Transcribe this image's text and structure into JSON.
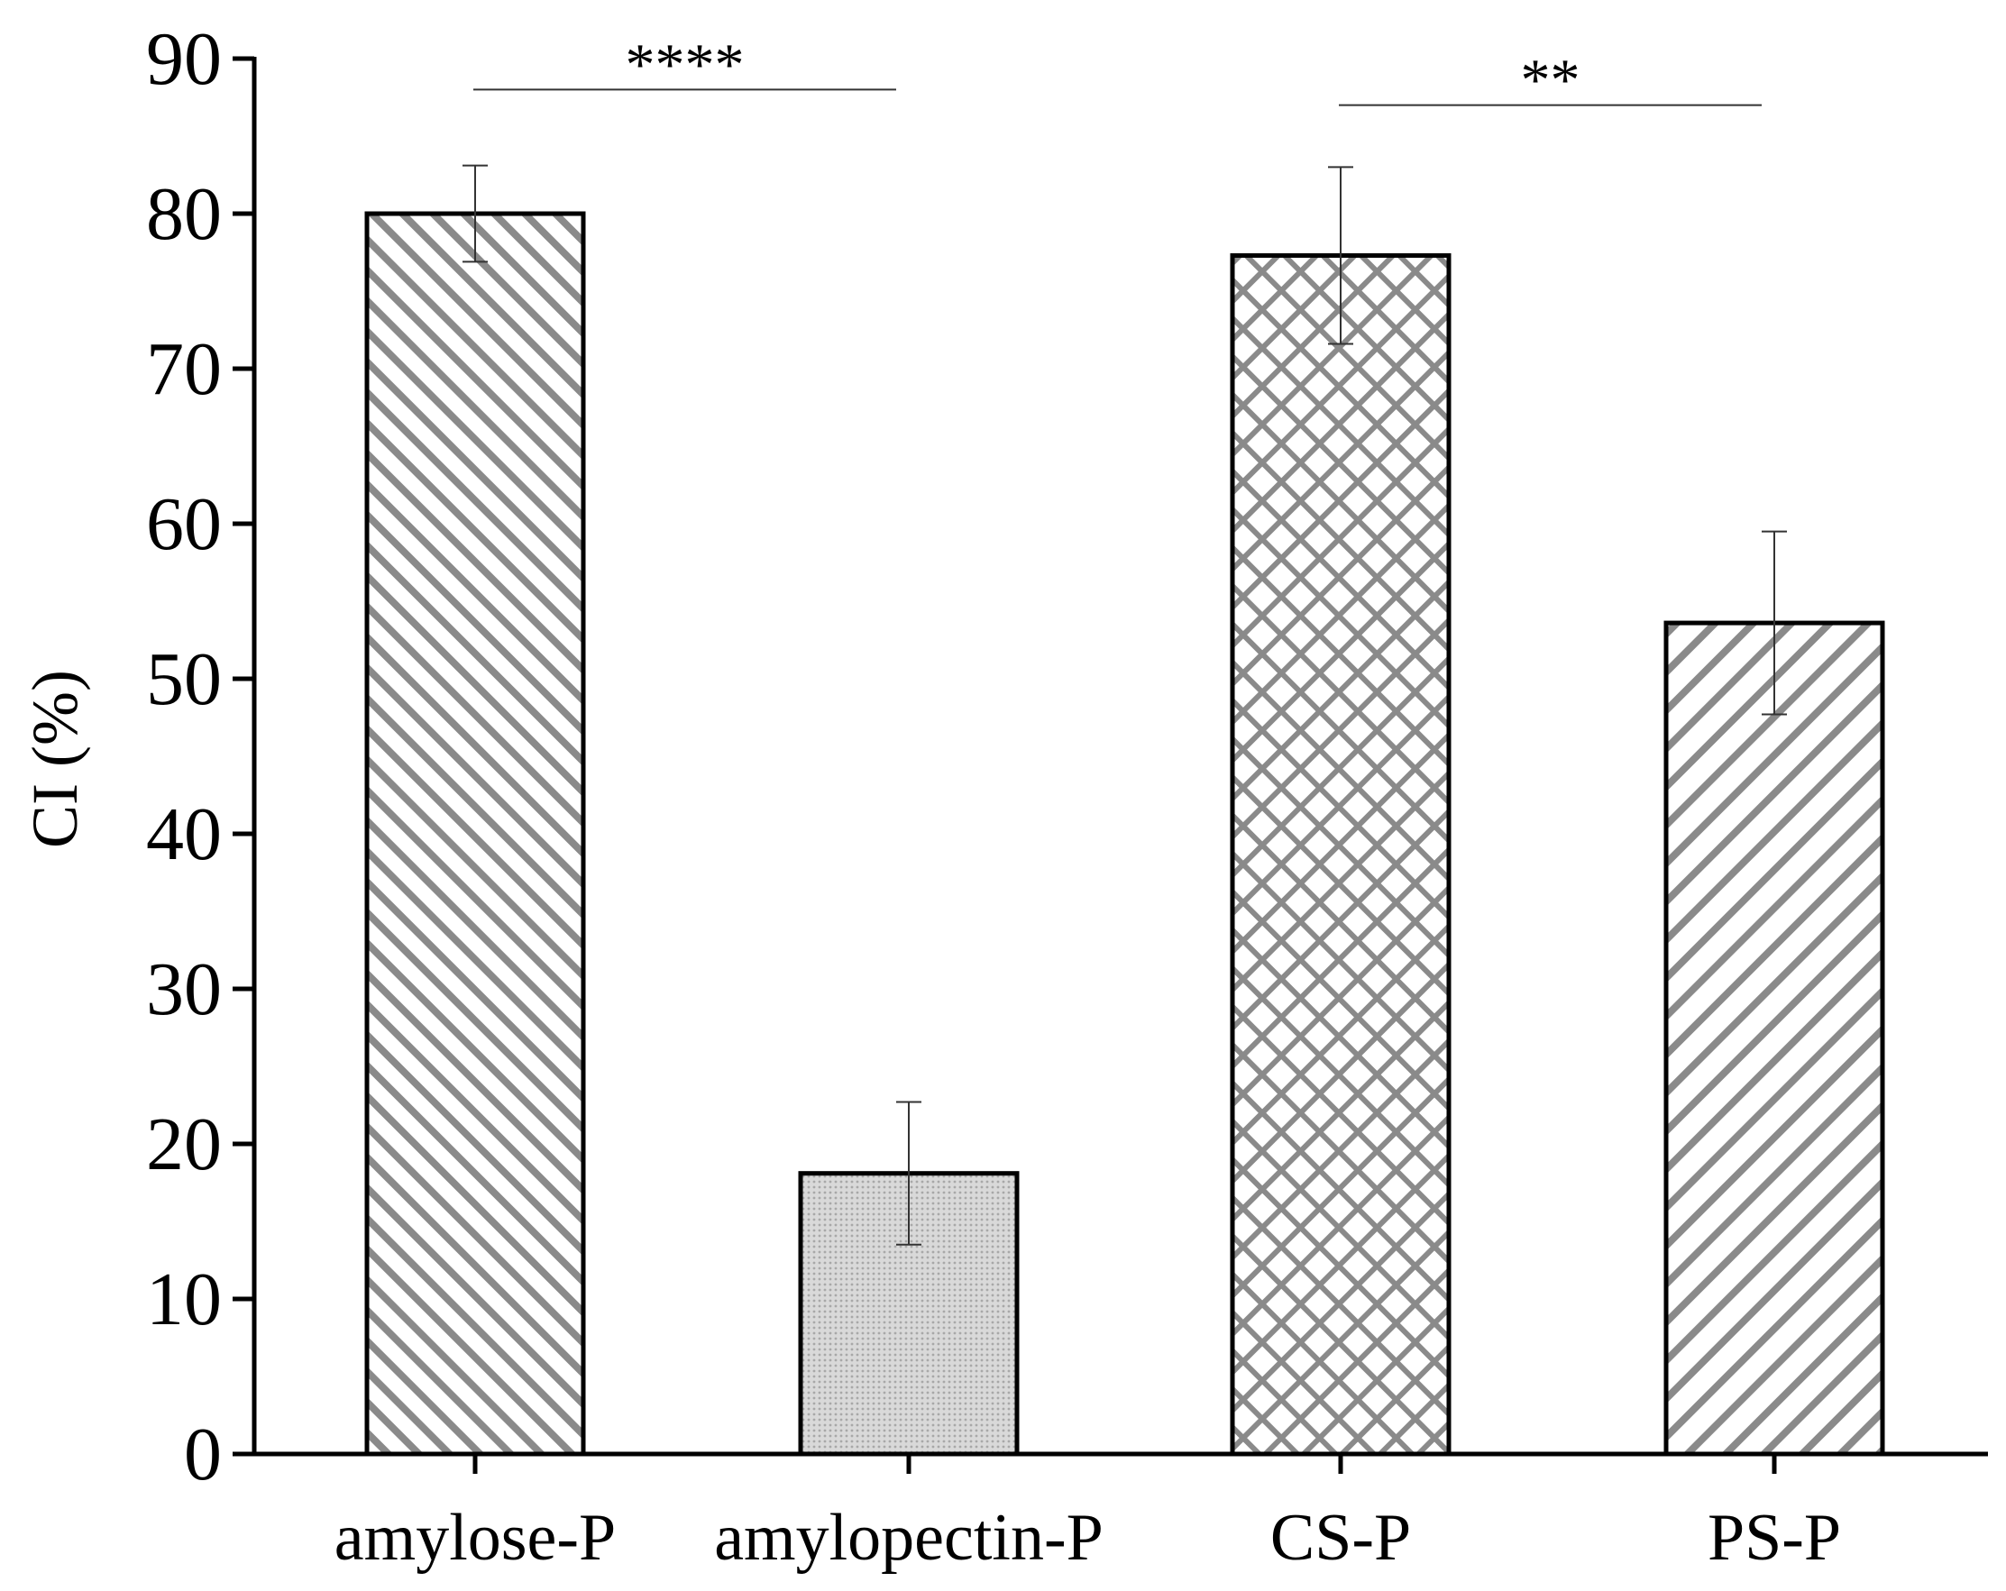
{
  "chart_data": {
    "type": "bar",
    "title": "",
    "xlabel": "",
    "ylabel": "CI (%)",
    "ylim": [
      0,
      90
    ],
    "yticks": [
      "0",
      "10",
      "20",
      "30",
      "40",
      "50",
      "60",
      "70",
      "80",
      "90"
    ],
    "yticks_values": [
      0,
      10,
      20,
      30,
      40,
      50,
      60,
      70,
      80,
      90
    ],
    "grid": false,
    "categories": [
      "amylose-P",
      "amylopectin-P",
      "CS-P",
      "PS-P"
    ],
    "values": [
      80.0,
      18.1,
      77.3,
      53.6
    ],
    "error": [
      3.1,
      4.6,
      5.7,
      5.9
    ],
    "patterns": [
      "diagonal-right",
      "dots",
      "crosshatch",
      "diagonal-left"
    ],
    "significance": [
      {
        "from": 0,
        "to": 1,
        "label": "****",
        "y": 88
      },
      {
        "from": 2,
        "to": 3,
        "label": "**",
        "y": 87
      }
    ],
    "colors": {
      "hatch": "#8a8a8a",
      "dots": "#a8a8a8",
      "dots_bg": "#d9d9d9",
      "outline": "#000000"
    }
  }
}
